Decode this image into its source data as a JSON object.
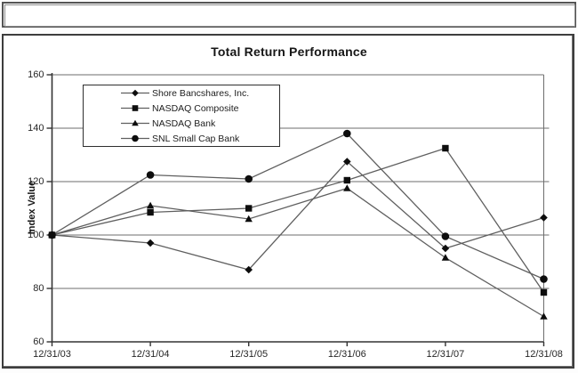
{
  "chart_data": {
    "type": "line",
    "title": "Total Return Performance",
    "xlabel": "",
    "ylabel": "Index Value",
    "categories": [
      "12/31/03",
      "12/31/04",
      "12/31/05",
      "12/31/06",
      "12/31/07",
      "12/31/08"
    ],
    "series": [
      {
        "name": "Shore Bancshares, Inc.",
        "marker": "diamond",
        "values": [
          100,
          97,
          87,
          127.5,
          95,
          106.5
        ]
      },
      {
        "name": "NASDAQ Composite",
        "marker": "square",
        "values": [
          100,
          108.5,
          110,
          120.5,
          132.5,
          78.5
        ]
      },
      {
        "name": "NASDAQ Bank",
        "marker": "triangle",
        "values": [
          100,
          111,
          106,
          117.5,
          91.5,
          69.5
        ]
      },
      {
        "name": "SNL Small Cap Bank",
        "marker": "circle",
        "values": [
          100,
          122.5,
          121,
          138,
          99.5,
          83.5
        ]
      }
    ],
    "ylim": [
      60,
      160
    ],
    "y_ticks": [
      60,
      80,
      100,
      120,
      140,
      160
    ],
    "grid": true,
    "legend_position": "top-left",
    "colors": {
      "line": "#5f5f5f",
      "marker": "#0d0d0d",
      "grid": "#6e6e6e",
      "axis": "#333333",
      "text": "#262626"
    }
  }
}
